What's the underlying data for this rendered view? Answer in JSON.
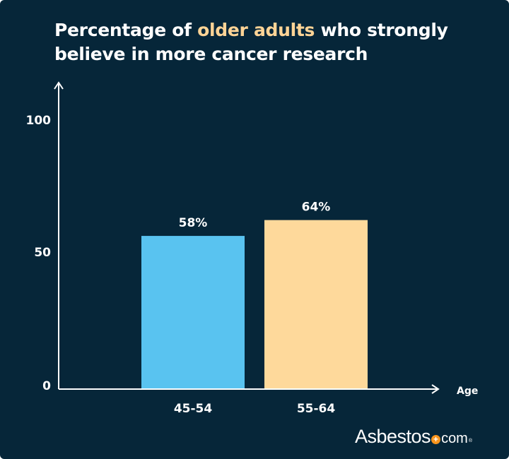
{
  "title": {
    "before": "Percentage of ",
    "highlight": "older adults",
    "after": " who strongly believe in more cancer research"
  },
  "logo": {
    "name": "Asbestos",
    "suffix": "com",
    "mark": "+",
    "registered": "®"
  },
  "colors": {
    "background": "#062639",
    "bar_45_54": "#59c3f0",
    "bar_55_64": "#fed99b",
    "highlight": "#ffd496",
    "axis": "#ffffff"
  },
  "chart_data": {
    "type": "bar",
    "categories": [
      "45-54",
      "55-64"
    ],
    "values": [
      58,
      64
    ],
    "value_labels": [
      "58%",
      "64%"
    ],
    "xlabel": "Age",
    "ylabel": "",
    "ylim": [
      0,
      100
    ],
    "yticks": [
      0,
      50,
      100
    ],
    "ytick_labels": [
      "0",
      "50",
      "100"
    ],
    "grid": false,
    "legend": "none"
  }
}
